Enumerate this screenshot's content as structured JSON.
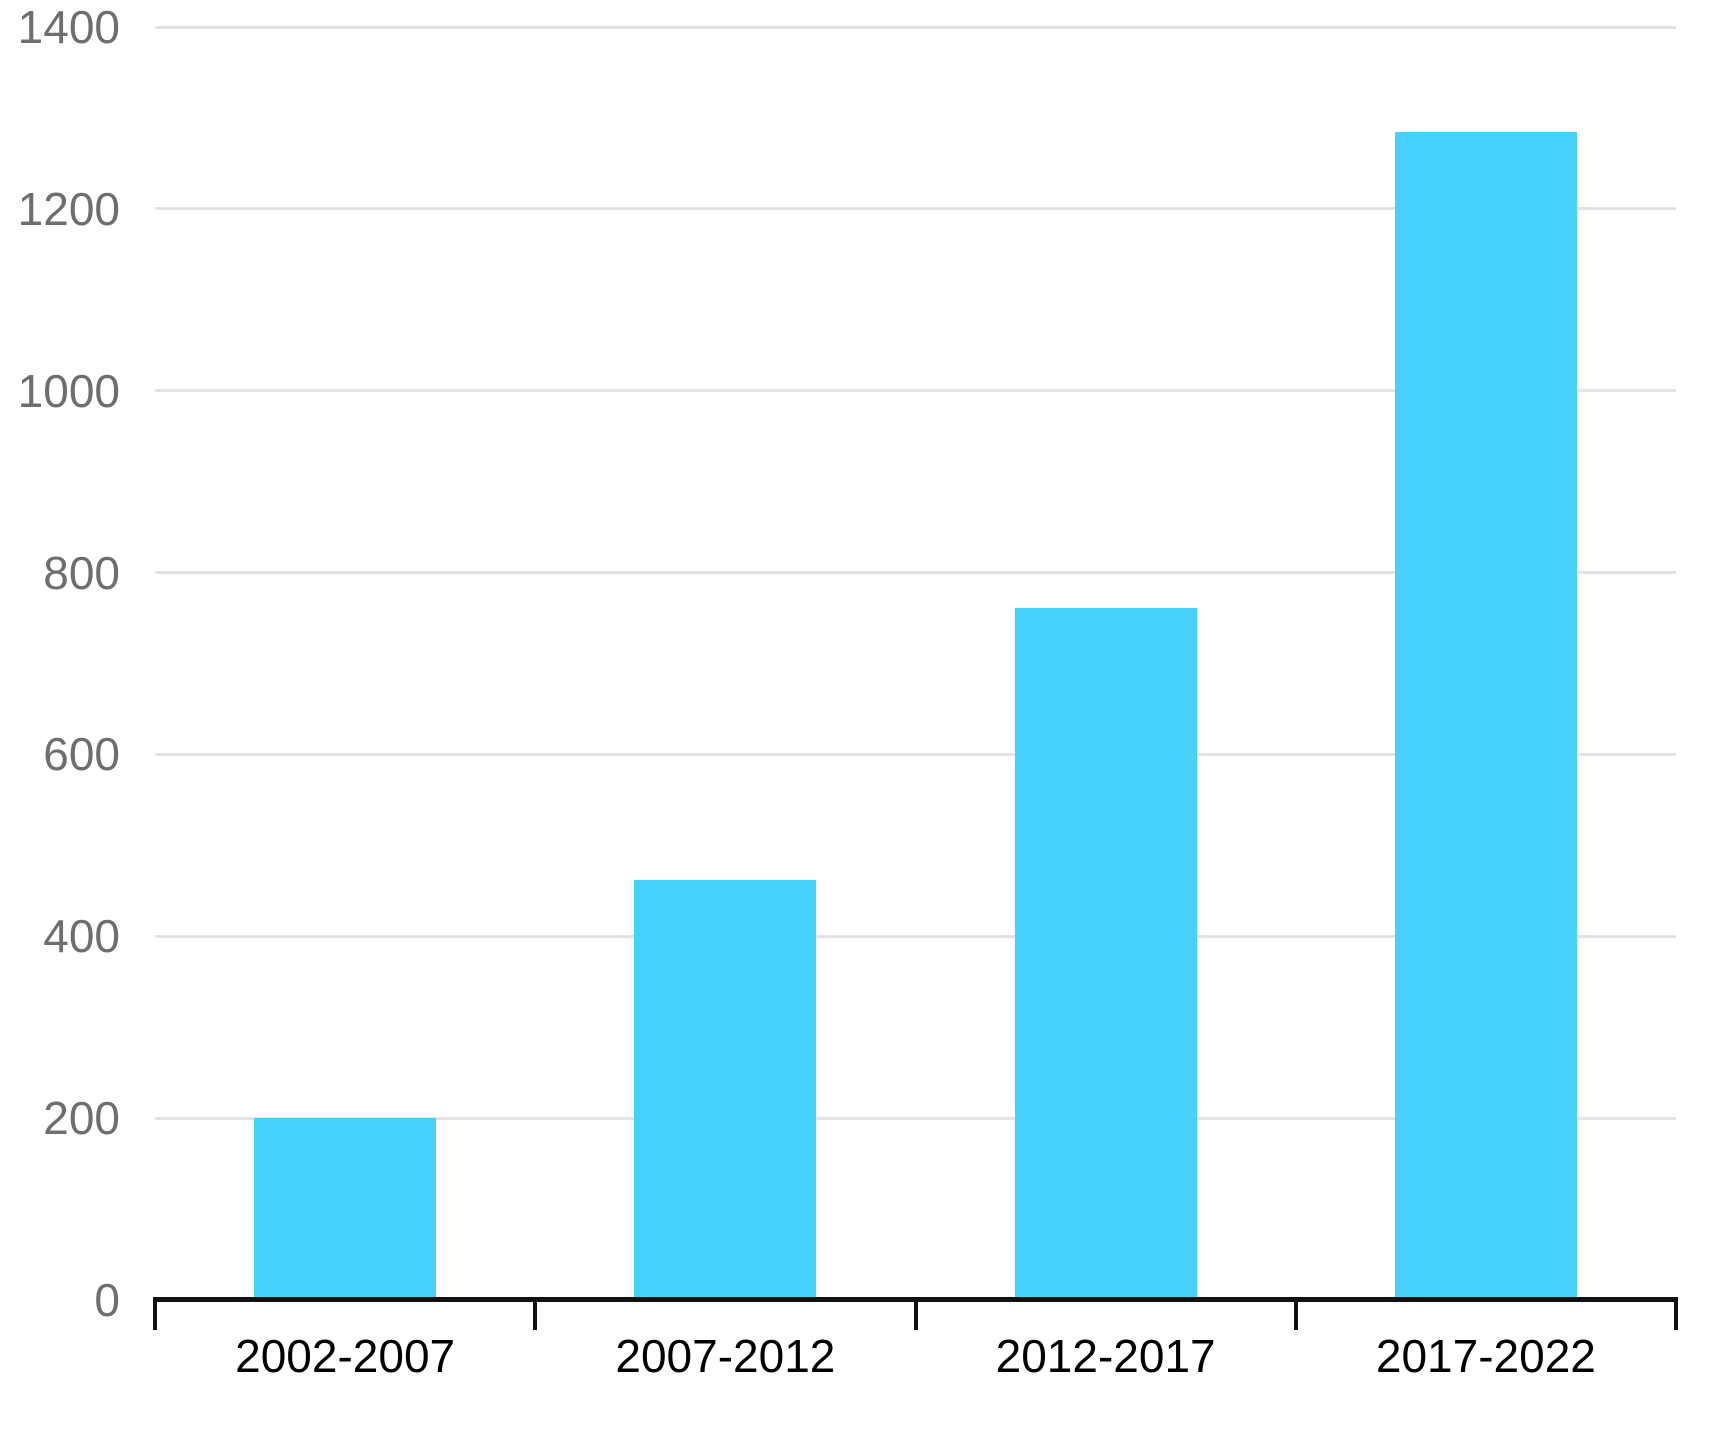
{
  "chart_data": {
    "type": "bar",
    "title": "",
    "xlabel": "",
    "ylabel": "",
    "categories": [
      "2002-2007",
      "2007-2012",
      "2012-2017",
      "2017-2022"
    ],
    "values": [
      200,
      462,
      761,
      1285
    ],
    "ylim": [
      0,
      1400
    ],
    "yticks": [
      0,
      200,
      400,
      600,
      800,
      1000,
      1200,
      1400
    ],
    "grid": true,
    "legend": false,
    "colors": {
      "bar": "#45D1FA",
      "gridline": "#E3E3E3",
      "axis": "#111111",
      "y_tick_label": "#6E6E6E",
      "x_tick_label": "#000000",
      "background": "#FFFFFF"
    }
  }
}
